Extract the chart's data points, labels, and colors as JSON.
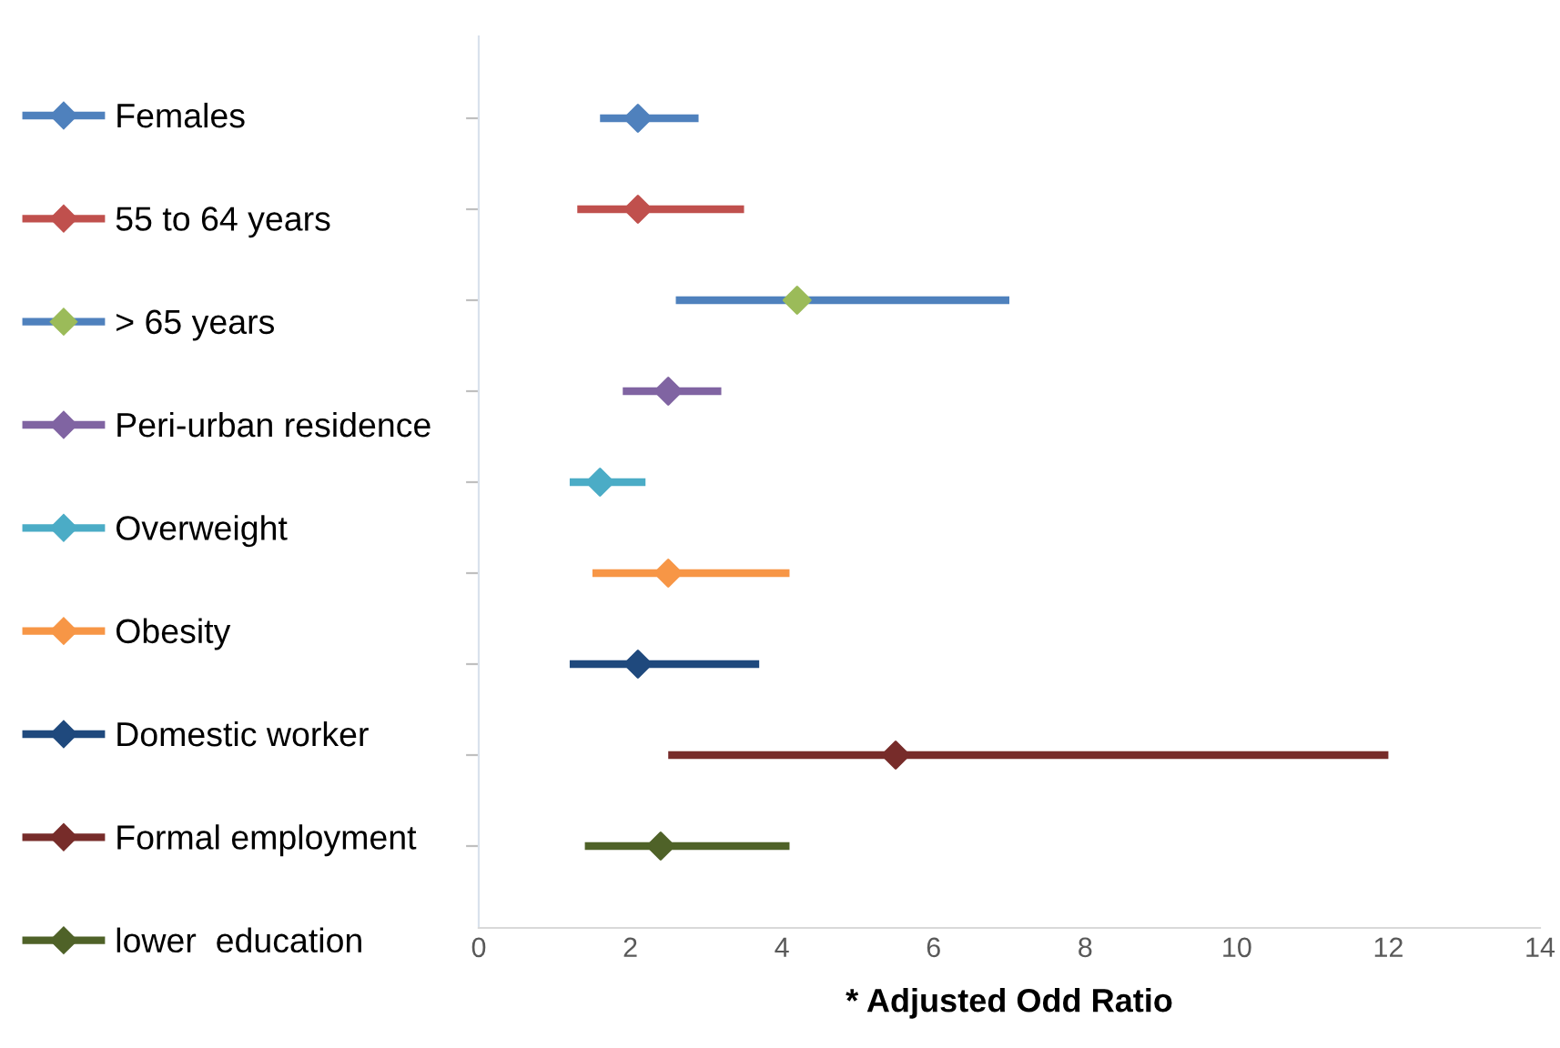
{
  "chart_data": {
    "type": "scatter",
    "orientation": "horizontal",
    "xlabel": "* Adjusted Odd Ratio",
    "categories": [
      null,
      null,
      null,
      null,
      null,
      null,
      null,
      null,
      null
    ],
    "xlim": [
      0,
      14
    ],
    "xticks": [
      0,
      2,
      4,
      6,
      8,
      10,
      12,
      14
    ],
    "grid": false,
    "legend": "left",
    "marker": "diamond",
    "tick_labels": "x",
    "series": [
      {
        "name": "Females",
        "color": "#4f81bd",
        "values": [
          2.1,
          null,
          null,
          null,
          null,
          null,
          null,
          null,
          null
        ],
        "errors": [
          [
            1.6,
            2.9
          ],
          null,
          null,
          null,
          null,
          null,
          null,
          null,
          null
        ]
      },
      {
        "name": "55 to 64 years",
        "color": "#c0504d",
        "values": [
          null,
          2.1,
          null,
          null,
          null,
          null,
          null,
          null,
          null
        ],
        "errors": [
          null,
          [
            1.3,
            3.5
          ],
          null,
          null,
          null,
          null,
          null,
          null,
          null
        ]
      },
      {
        "name": "> 65 years",
        "color": "#4f81bd",
        "colors": [
          null,
          null,
          "#9bbb59",
          null,
          null,
          null,
          null,
          null,
          null
        ],
        "values": [
          null,
          null,
          4.2,
          null,
          null,
          null,
          null,
          null,
          null
        ],
        "errors": [
          null,
          null,
          [
            2.6,
            7.0
          ],
          null,
          null,
          null,
          null,
          null,
          null
        ]
      },
      {
        "name": "Peri-urban residence",
        "color": "#8064a2",
        "values": [
          null,
          null,
          null,
          2.5,
          null,
          null,
          null,
          null,
          null
        ],
        "errors": [
          null,
          null,
          null,
          [
            1.9,
            3.2
          ],
          null,
          null,
          null,
          null,
          null
        ]
      },
      {
        "name": "Overweight",
        "color": "#4bacc6",
        "values": [
          null,
          null,
          null,
          null,
          1.6,
          null,
          null,
          null,
          null
        ],
        "errors": [
          null,
          null,
          null,
          null,
          [
            1.2,
            2.2
          ],
          null,
          null,
          null,
          null
        ]
      },
      {
        "name": "Obesity",
        "color": "#f79646",
        "values": [
          null,
          null,
          null,
          null,
          null,
          2.5,
          null,
          null,
          null
        ],
        "errors": [
          null,
          null,
          null,
          null,
          null,
          [
            1.5,
            4.1
          ],
          null,
          null,
          null
        ]
      },
      {
        "name": "Domestic worker",
        "color": "#1f497d",
        "values": [
          null,
          null,
          null,
          null,
          null,
          null,
          2.1,
          null,
          null
        ],
        "errors": [
          null,
          null,
          null,
          null,
          null,
          null,
          [
            1.2,
            3.7
          ],
          null,
          null
        ]
      },
      {
        "name": "Formal employment",
        "color": "#772c2a",
        "values": [
          null,
          null,
          null,
          null,
          null,
          null,
          null,
          5.5,
          null
        ],
        "errors": [
          null,
          null,
          null,
          null,
          null,
          null,
          null,
          [
            2.5,
            12.0
          ],
          null
        ]
      },
      {
        "name": "lower  education",
        "color": "#4f6228",
        "values": [
          null,
          null,
          null,
          null,
          null,
          null,
          null,
          null,
          2.4
        ],
        "errors": [
          null,
          null,
          null,
          null,
          null,
          null,
          null,
          null,
          [
            1.4,
            4.1
          ]
        ]
      }
    ]
  }
}
